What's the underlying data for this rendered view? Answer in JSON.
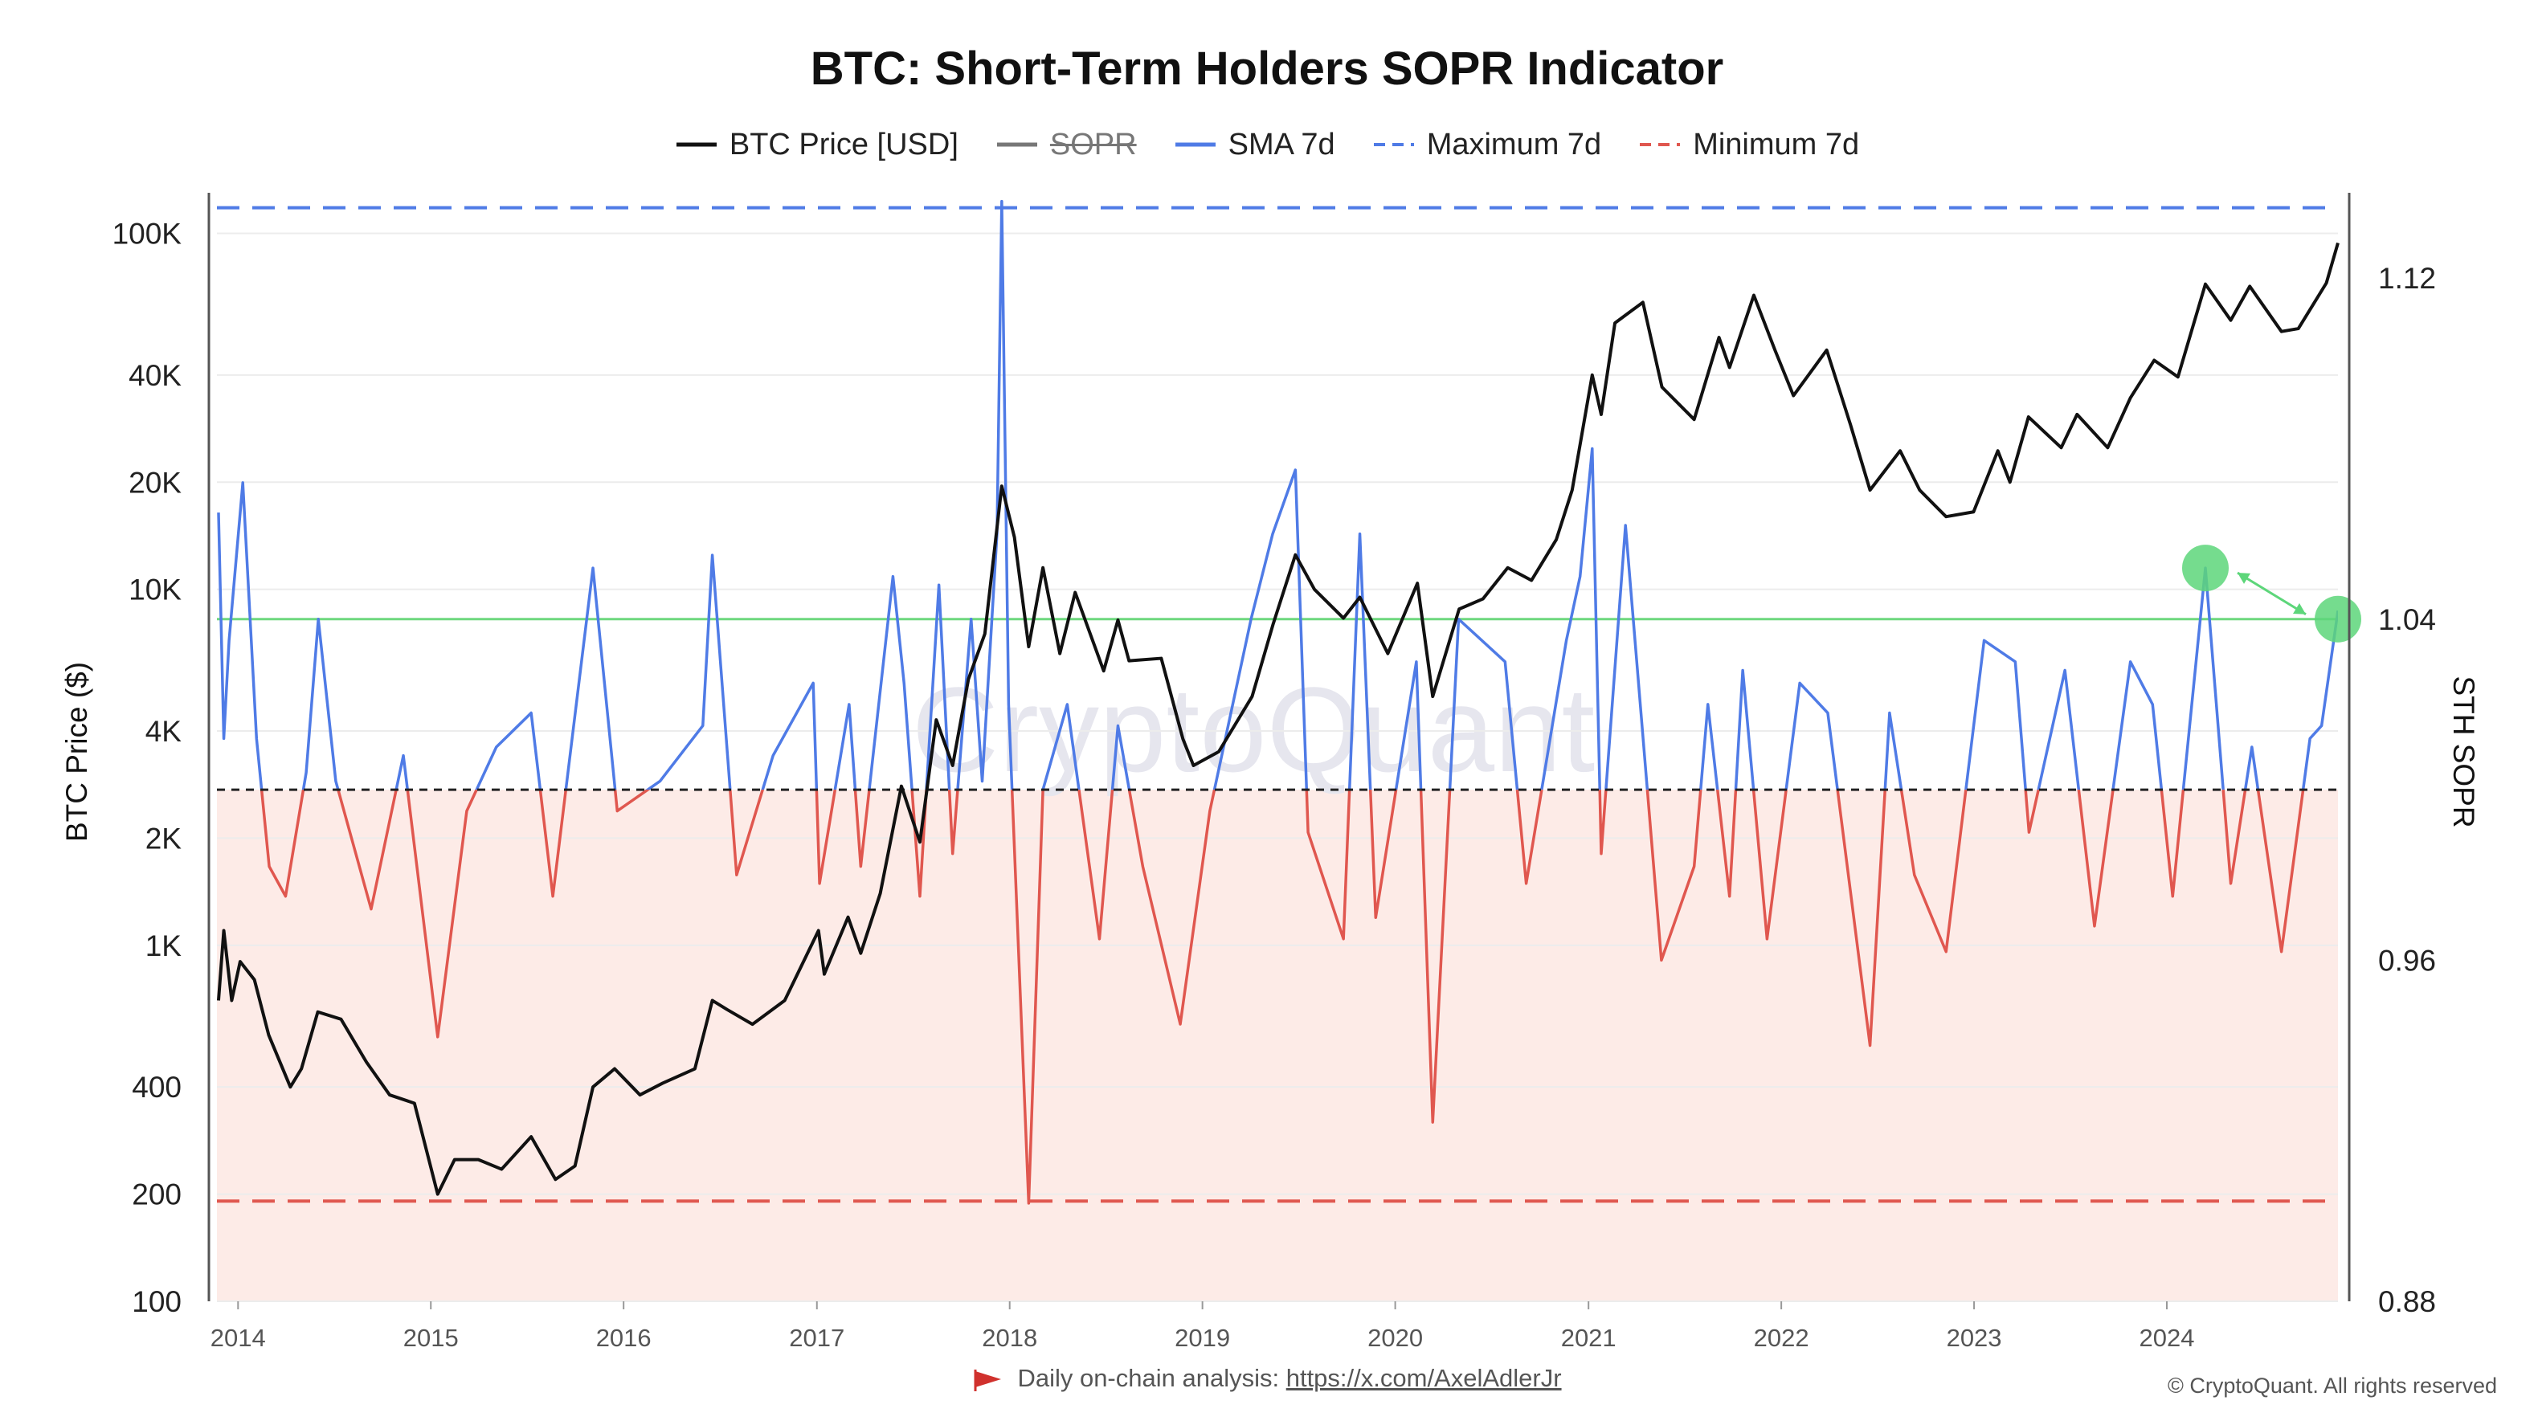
{
  "title": "BTC: Short-Term Holders SOPR Indicator",
  "legend": [
    {
      "label": "BTC Price [USD]",
      "color": "#111111",
      "style": "solid"
    },
    {
      "label": "SOPR",
      "color": "#777777",
      "style": "solid-hidden"
    },
    {
      "label": "SMA 7d",
      "color": "#4f7be6",
      "style": "solid"
    },
    {
      "label": "Maximum 7d",
      "color": "#4f7be6",
      "style": "dashed"
    },
    {
      "label": "Minimum 7d",
      "color": "#e0574f",
      "style": "dashed"
    }
  ],
  "watermark": "CryptoQuant",
  "footer": {
    "prefix": "Daily on-chain analysis:",
    "link": "https://x.com/AxelAdlerJr",
    "copyright": "© CryptoQuant. All rights reserved"
  },
  "chart_data": {
    "type": "line",
    "title": "BTC: Short-Term Holders SOPR Indicator",
    "x_ticks": [
      "2014",
      "2015",
      "2016",
      "2017",
      "2018",
      "2019",
      "2020",
      "2021",
      "2022",
      "2023",
      "2024"
    ],
    "xlim": [
      "2013-11-22",
      "2024-11-20"
    ],
    "left_axis": {
      "label": "BTC Price ($)",
      "scale": "log",
      "ylim": [
        100,
        130000
      ],
      "tick_values": [
        100,
        200,
        400,
        1000,
        2000,
        4000,
        10000,
        20000,
        40000,
        100000
      ],
      "tick_labels": [
        "100",
        "200",
        "400",
        "1K",
        "2K",
        "4K",
        "10K",
        "20K",
        "40K",
        "100K"
      ]
    },
    "right_axis": {
      "label": "STH SOPR",
      "scale": "linear",
      "ylim": [
        0.88,
        1.14
      ],
      "tick_values": [
        0.88,
        0.96,
        1.04,
        1.12
      ],
      "tick_labels": [
        "0.88",
        "0.96",
        "1.04",
        "1.12"
      ]
    },
    "reference_lines": {
      "baseline": 1.0,
      "maximum_7d": 1.1365,
      "minimum_7d": 0.9035,
      "green_level": 1.04
    },
    "series": [
      {
        "name": "BTC Price [USD]",
        "axis": "left",
        "color": "#111111",
        "points": [
          [
            "2013-11-25",
            700
          ],
          [
            "2013-12-05",
            1100
          ],
          [
            "2013-12-20",
            700
          ],
          [
            "2014-01-05",
            900
          ],
          [
            "2014-02-01",
            800
          ],
          [
            "2014-02-28",
            560
          ],
          [
            "2014-04-10",
            400
          ],
          [
            "2014-05-01",
            450
          ],
          [
            "2014-06-01",
            650
          ],
          [
            "2014-07-15",
            620
          ],
          [
            "2014-09-01",
            470
          ],
          [
            "2014-10-15",
            380
          ],
          [
            "2014-12-01",
            360
          ],
          [
            "2015-01-14",
            200
          ],
          [
            "2015-02-15",
            250
          ],
          [
            "2015-04-01",
            250
          ],
          [
            "2015-05-15",
            235
          ],
          [
            "2015-07-10",
            290
          ],
          [
            "2015-08-25",
            220
          ],
          [
            "2015-10-01",
            240
          ],
          [
            "2015-11-04",
            400
          ],
          [
            "2015-12-15",
            450
          ],
          [
            "2016-02-01",
            380
          ],
          [
            "2016-03-15",
            410
          ],
          [
            "2016-05-15",
            450
          ],
          [
            "2016-06-17",
            700
          ],
          [
            "2016-07-15",
            660
          ],
          [
            "2016-09-01",
            600
          ],
          [
            "2016-11-01",
            700
          ],
          [
            "2017-01-04",
            1100
          ],
          [
            "2017-01-15",
            830
          ],
          [
            "2017-03-01",
            1200
          ],
          [
            "2017-03-25",
            950
          ],
          [
            "2017-05-01",
            1400
          ],
          [
            "2017-06-10",
            2800
          ],
          [
            "2017-07-15",
            1950
          ],
          [
            "2017-08-15",
            4300
          ],
          [
            "2017-09-15",
            3200
          ],
          [
            "2017-10-15",
            5600
          ],
          [
            "2017-11-15",
            7500
          ],
          [
            "2017-12-17",
            19500
          ],
          [
            "2018-01-10",
            14000
          ],
          [
            "2018-02-06",
            6900
          ],
          [
            "2018-03-05",
            11500
          ],
          [
            "2018-04-06",
            6600
          ],
          [
            "2018-05-05",
            9800
          ],
          [
            "2018-06-28",
            5900
          ],
          [
            "2018-07-25",
            8200
          ],
          [
            "2018-08-15",
            6300
          ],
          [
            "2018-10-15",
            6400
          ],
          [
            "2018-11-25",
            3800
          ],
          [
            "2018-12-15",
            3200
          ],
          [
            "2019-02-01",
            3500
          ],
          [
            "2019-04-05",
            5000
          ],
          [
            "2019-05-15",
            8000
          ],
          [
            "2019-06-26",
            12500
          ],
          [
            "2019-08-01",
            10000
          ],
          [
            "2019-09-25",
            8300
          ],
          [
            "2019-10-26",
            9500
          ],
          [
            "2019-12-18",
            6600
          ],
          [
            "2020-02-12",
            10400
          ],
          [
            "2020-03-12",
            5000
          ],
          [
            "2020-05-01",
            8800
          ],
          [
            "2020-06-15",
            9400
          ],
          [
            "2020-08-01",
            11500
          ],
          [
            "2020-09-15",
            10600
          ],
          [
            "2020-11-01",
            13800
          ],
          [
            "2020-12-01",
            19000
          ],
          [
            "2021-01-08",
            40000
          ],
          [
            "2021-01-25",
            31000
          ],
          [
            "2021-02-20",
            56000
          ],
          [
            "2021-04-14",
            64000
          ],
          [
            "2021-05-20",
            37000
          ],
          [
            "2021-07-20",
            30000
          ],
          [
            "2021-09-05",
            51000
          ],
          [
            "2021-09-25",
            42000
          ],
          [
            "2021-11-10",
            67000
          ],
          [
            "2021-12-20",
            47000
          ],
          [
            "2022-01-24",
            35000
          ],
          [
            "2022-03-28",
            47000
          ],
          [
            "2022-05-12",
            29000
          ],
          [
            "2022-06-18",
            19000
          ],
          [
            "2022-08-14",
            24500
          ],
          [
            "2022-09-20",
            19000
          ],
          [
            "2022-11-09",
            16000
          ],
          [
            "2022-12-31",
            16500
          ],
          [
            "2023-02-15",
            24500
          ],
          [
            "2023-03-10",
            20000
          ],
          [
            "2023-04-14",
            30500
          ],
          [
            "2023-06-15",
            25000
          ],
          [
            "2023-07-15",
            31000
          ],
          [
            "2023-09-11",
            25000
          ],
          [
            "2023-10-24",
            34500
          ],
          [
            "2023-12-08",
            44000
          ],
          [
            "2024-01-22",
            39500
          ],
          [
            "2024-03-14",
            72000
          ],
          [
            "2024-05-01",
            57000
          ],
          [
            "2024-06-06",
            71000
          ],
          [
            "2024-08-05",
            53000
          ],
          [
            "2024-09-06",
            54000
          ],
          [
            "2024-10-29",
            72500
          ],
          [
            "2024-11-20",
            94000
          ]
        ]
      },
      {
        "name": "SMA 7d",
        "axis": "right",
        "color": "#4f7be6",
        "points": [
          [
            "2013-11-25",
            1.065
          ],
          [
            "2013-12-05",
            1.012
          ],
          [
            "2013-12-15",
            1.035
          ],
          [
            "2014-01-10",
            1.072
          ],
          [
            "2014-02-05",
            1.012
          ],
          [
            "2014-03-01",
            0.982
          ],
          [
            "2014-04-01",
            0.975
          ],
          [
            "2014-05-10",
            1.004
          ],
          [
            "2014-06-02",
            1.04
          ],
          [
            "2014-07-05",
            1.002
          ],
          [
            "2014-09-10",
            0.972
          ],
          [
            "2014-11-10",
            1.008
          ],
          [
            "2015-01-14",
            0.942
          ],
          [
            "2015-03-10",
            0.995
          ],
          [
            "2015-05-05",
            1.01
          ],
          [
            "2015-07-10",
            1.018
          ],
          [
            "2015-08-20",
            0.975
          ],
          [
            "2015-11-04",
            1.052
          ],
          [
            "2015-12-20",
            0.995
          ],
          [
            "2016-03-10",
            1.002
          ],
          [
            "2016-05-30",
            1.015
          ],
          [
            "2016-06-17",
            1.055
          ],
          [
            "2016-08-02",
            0.98
          ],
          [
            "2016-10-10",
            1.008
          ],
          [
            "2016-12-25",
            1.025
          ],
          [
            "2017-01-06",
            0.978
          ],
          [
            "2017-03-03",
            1.02
          ],
          [
            "2017-03-25",
            0.982
          ],
          [
            "2017-05-25",
            1.05
          ],
          [
            "2017-06-15",
            1.025
          ],
          [
            "2017-07-15",
            0.975
          ],
          [
            "2017-08-20",
            1.048
          ],
          [
            "2017-09-15",
            0.985
          ],
          [
            "2017-10-20",
            1.04
          ],
          [
            "2017-11-10",
            1.002
          ],
          [
            "2017-12-08",
            1.06
          ],
          [
            "2017-12-17",
            1.138
          ],
          [
            "2017-12-30",
            1.02
          ],
          [
            "2018-02-06",
            0.903
          ],
          [
            "2018-03-05",
            1.0
          ],
          [
            "2018-04-20",
            1.02
          ],
          [
            "2018-06-20",
            0.965
          ],
          [
            "2018-07-25",
            1.015
          ],
          [
            "2018-09-10",
            0.982
          ],
          [
            "2018-11-20",
            0.945
          ],
          [
            "2019-01-15",
            0.995
          ],
          [
            "2019-04-03",
            1.04
          ],
          [
            "2019-05-14",
            1.06
          ],
          [
            "2019-06-26",
            1.075
          ],
          [
            "2019-07-20",
            0.99
          ],
          [
            "2019-09-25",
            0.965
          ],
          [
            "2019-10-26",
            1.06
          ],
          [
            "2019-11-25",
            0.97
          ],
          [
            "2020-02-10",
            1.03
          ],
          [
            "2020-03-12",
            0.922
          ],
          [
            "2020-04-30",
            1.04
          ],
          [
            "2020-07-27",
            1.03
          ],
          [
            "2020-09-05",
            0.978
          ],
          [
            "2020-11-20",
            1.035
          ],
          [
            "2020-12-16",
            1.05
          ],
          [
            "2021-01-08",
            1.08
          ],
          [
            "2021-01-25",
            0.985
          ],
          [
            "2021-03-12",
            1.062
          ],
          [
            "2021-05-19",
            0.96
          ],
          [
            "2021-07-20",
            0.982
          ],
          [
            "2021-08-15",
            1.02
          ],
          [
            "2021-09-25",
            0.975
          ],
          [
            "2021-10-20",
            1.028
          ],
          [
            "2021-12-05",
            0.965
          ],
          [
            "2022-02-05",
            1.025
          ],
          [
            "2022-03-30",
            1.018
          ],
          [
            "2022-06-18",
            0.94
          ],
          [
            "2022-07-25",
            1.018
          ],
          [
            "2022-09-10",
            0.98
          ],
          [
            "2022-11-09",
            0.962
          ],
          [
            "2023-01-20",
            1.035
          ],
          [
            "2023-03-20",
            1.03
          ],
          [
            "2023-04-15",
            0.99
          ],
          [
            "2023-06-22",
            1.028
          ],
          [
            "2023-08-17",
            0.968
          ],
          [
            "2023-10-24",
            1.03
          ],
          [
            "2023-12-05",
            1.02
          ],
          [
            "2024-01-12",
            0.975
          ],
          [
            "2024-03-14",
            1.052
          ],
          [
            "2024-05-01",
            0.978
          ],
          [
            "2024-06-10",
            1.01
          ],
          [
            "2024-08-05",
            0.962
          ],
          [
            "2024-09-28",
            1.012
          ],
          [
            "2024-10-20",
            1.015
          ],
          [
            "2024-11-20",
            1.042
          ]
        ]
      }
    ],
    "annotations": [
      {
        "type": "circle",
        "date": "2024-03-14",
        "value": 1.052,
        "color": "#5dd67a"
      },
      {
        "type": "circle",
        "date": "2024-11-20",
        "value": 1.04,
        "color": "#5dd67a"
      },
      {
        "type": "arrow",
        "from": "2024-03-14",
        "to": "2024-11-20",
        "color": "#5dd67a"
      }
    ]
  }
}
